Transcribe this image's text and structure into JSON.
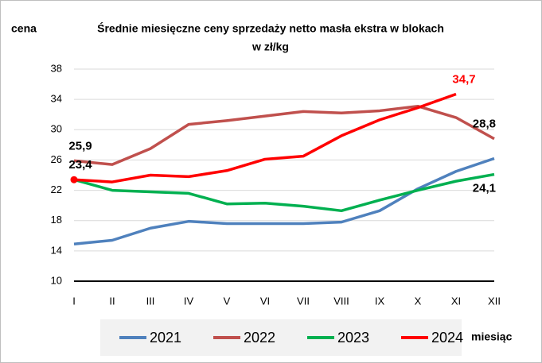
{
  "chart_data": {
    "type": "line",
    "title": [
      "Średnie miesięczne ceny sprzedaży netto masła ekstra w blokach",
      "w zł/kg"
    ],
    "y_label": "cena",
    "x_label": "miesiąc",
    "categories": [
      "I",
      "II",
      "III",
      "IV",
      "V",
      "VI",
      "VII",
      "VIII",
      "IX",
      "X",
      "XI",
      "XII"
    ],
    "ylim": [
      10,
      38
    ],
    "yticks": [
      10,
      14,
      18,
      22,
      26,
      30,
      34,
      38
    ],
    "grid": true,
    "legend": "bottom",
    "series": [
      {
        "name": "2021",
        "color": "#4f81bd",
        "values": [
          14.9,
          15.4,
          17.0,
          17.9,
          17.6,
          17.6,
          17.6,
          17.8,
          19.3,
          22.2,
          24.5,
          26.2
        ]
      },
      {
        "name": "2022",
        "color": "#c0504d",
        "values": [
          25.9,
          25.4,
          27.5,
          30.7,
          31.2,
          31.8,
          32.4,
          32.2,
          32.5,
          33.1,
          31.6,
          28.8
        ],
        "value_labels": [
          "25,9",
          null,
          null,
          null,
          null,
          null,
          null,
          null,
          null,
          null,
          null,
          "28,8"
        ],
        "value_label_colors": [
          "#000000",
          null,
          null,
          null,
          null,
          null,
          null,
          null,
          null,
          null,
          null,
          "#000000"
        ]
      },
      {
        "name": "2023",
        "color": "#00b050",
        "values": [
          23.4,
          22.0,
          21.8,
          21.6,
          20.2,
          20.3,
          19.9,
          19.3,
          20.7,
          22.0,
          23.2,
          24.1
        ],
        "value_labels": [
          null,
          null,
          null,
          null,
          null,
          null,
          null,
          null,
          null,
          null,
          null,
          "24,1"
        ],
        "value_label_colors": [
          null,
          null,
          null,
          null,
          null,
          null,
          null,
          null,
          null,
          null,
          null,
          "#000000"
        ]
      },
      {
        "name": "2024",
        "color": "#ff0000",
        "values": [
          23.4,
          23.1,
          24.0,
          23.8,
          24.6,
          26.1,
          26.5,
          29.2,
          31.3,
          32.9,
          34.7,
          null
        ],
        "value_labels": [
          "23,4",
          null,
          null,
          null,
          null,
          null,
          null,
          null,
          null,
          null,
          "34,7",
          null
        ],
        "value_label_colors": [
          "#000000",
          null,
          null,
          null,
          null,
          null,
          null,
          null,
          null,
          null,
          "#ff0000",
          null
        ]
      }
    ]
  }
}
